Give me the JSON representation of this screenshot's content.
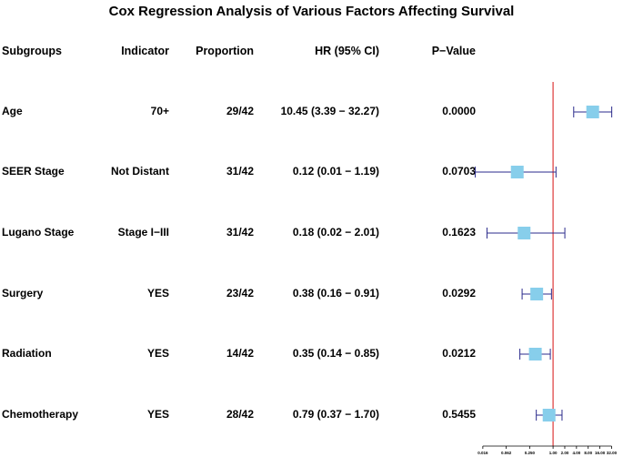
{
  "chart_data": {
    "type": "forest",
    "title": "Cox Regression Analysis of Various Factors Affecting Survival",
    "columns": [
      "Subgroups",
      "Indicator",
      "Proportion",
      "HR (95% CI)",
      "P−Value"
    ],
    "rows": [
      {
        "subgroup": "Age",
        "indicator": "70+",
        "proportion": "29/42",
        "hr_text": "10.45 (3.39 − 32.27)",
        "p": "0.0000",
        "hr": 10.45,
        "lo": 3.39,
        "hi": 32.27
      },
      {
        "subgroup": "SEER Stage",
        "indicator": "Not Distant",
        "proportion": "31/42",
        "hr_text": "0.12 (0.01 − 1.19)",
        "p": "0.0703",
        "hr": 0.12,
        "lo": 0.01,
        "hi": 1.19
      },
      {
        "subgroup": "Lugano Stage",
        "indicator": "Stage I−III",
        "proportion": "31/42",
        "hr_text": "0.18 (0.02 − 2.01)",
        "p": "0.1623",
        "hr": 0.18,
        "lo": 0.02,
        "hi": 2.01
      },
      {
        "subgroup": "Surgery",
        "indicator": "YES",
        "proportion": "23/42",
        "hr_text": "0.38 (0.16 − 0.91)",
        "p": "0.0292",
        "hr": 0.38,
        "lo": 0.16,
        "hi": 0.91
      },
      {
        "subgroup": "Radiation",
        "indicator": "YES",
        "proportion": "14/42",
        "hr_text": "0.35 (0.14 − 0.85)",
        "p": "0.0212",
        "hr": 0.35,
        "lo": 0.14,
        "hi": 0.85
      },
      {
        "subgroup": "Chemotherapy",
        "indicator": "YES",
        "proportion": "28/42",
        "hr_text": "0.79 (0.37 − 1.70)",
        "p": "0.5455",
        "hr": 0.79,
        "lo": 0.37,
        "hi": 1.7
      }
    ],
    "x_scale": "log2",
    "x_ticks": [
      "0.016",
      "0.062",
      "0.250",
      "1.00",
      "2.00",
      "4.00",
      "8.00",
      "16.00",
      "32.00"
    ],
    "x_tick_values": [
      0.015625,
      0.0625,
      0.25,
      1,
      2,
      4,
      8,
      16,
      32
    ],
    "xlim": [
      0.0078125,
      48
    ],
    "reference_line": 1,
    "colors": {
      "box": "#87ceeb",
      "ci": "#2b2b8c",
      "reference": "#e04848",
      "text": "#000000"
    }
  }
}
